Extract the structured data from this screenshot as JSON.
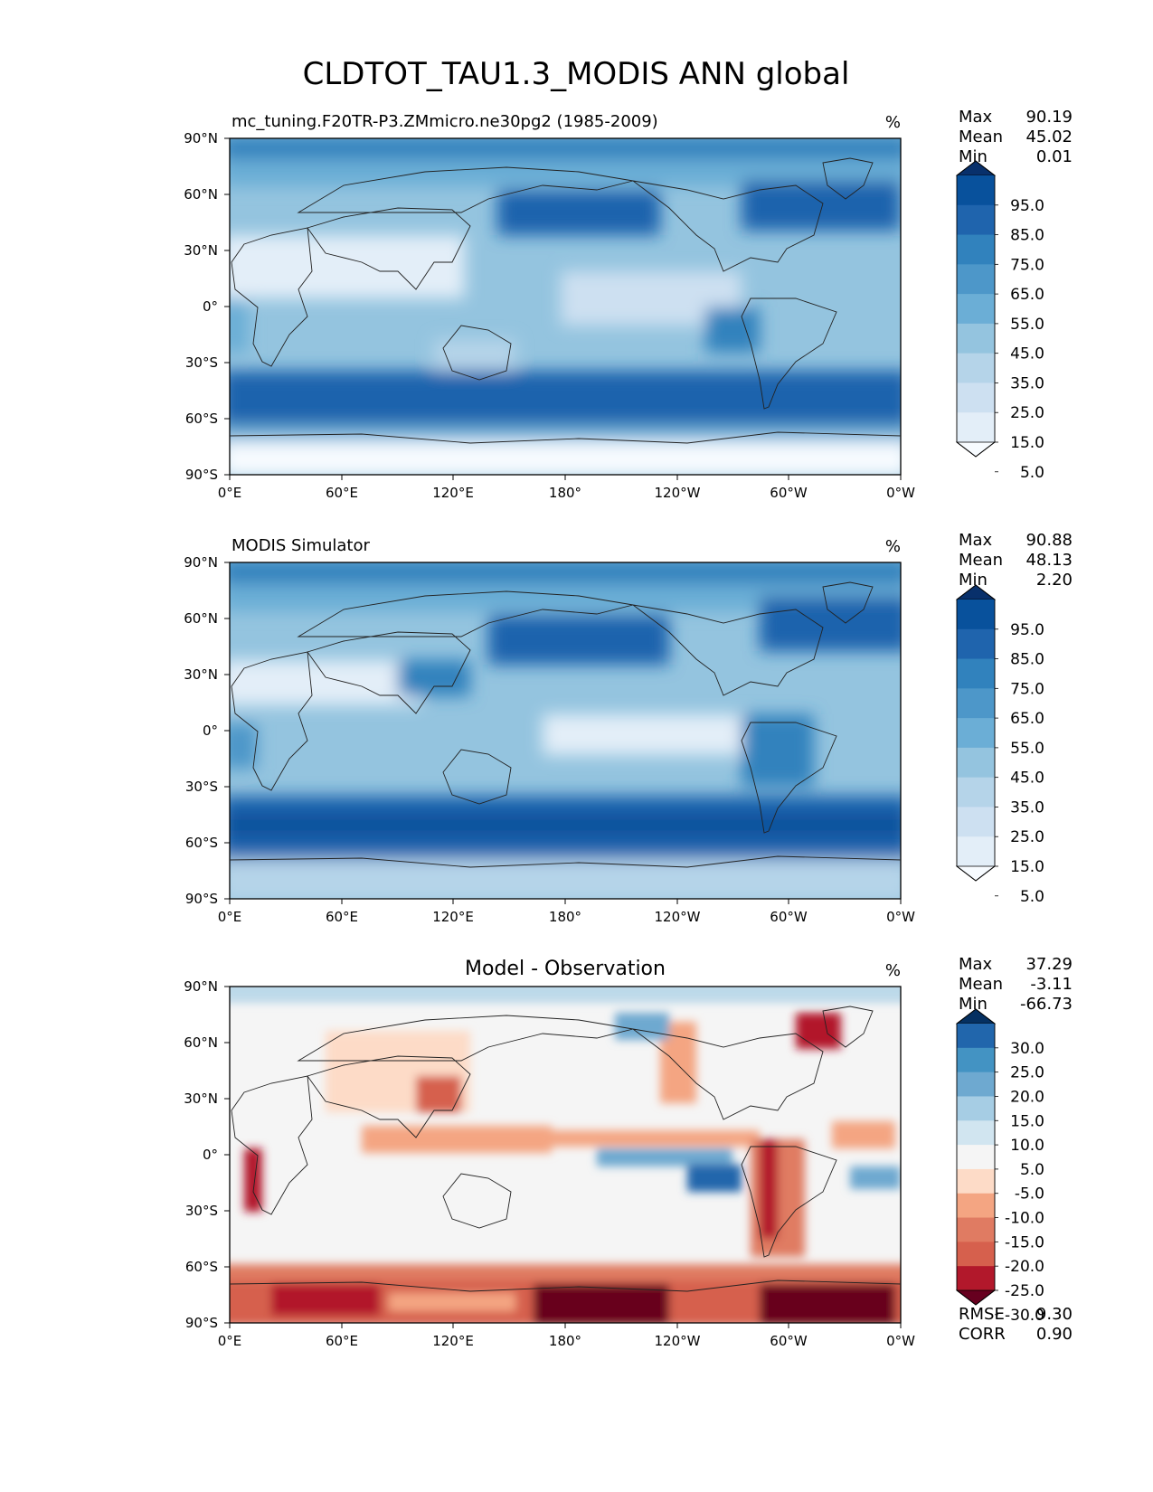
{
  "title": "CLDTOT_TAU1.3_MODIS ANN global",
  "lat_labels": [
    "90°N",
    "60°N",
    "30°N",
    "0°",
    "30°S",
    "60°S",
    "90°S"
  ],
  "lon_labels": [
    "0°E",
    "60°E",
    "120°E",
    "180°",
    "120°W",
    "60°W",
    "0°W"
  ],
  "panels": [
    {
      "id": "test",
      "title": "mc_tuning.F20TR-P3.ZMmicro.ne30pg2 (1985-2009)",
      "units": "%",
      "stats": [
        {
          "label": "Max",
          "value": "90.19"
        },
        {
          "label": "Mean",
          "value": "45.02"
        },
        {
          "label": "Min",
          "value": "0.01"
        }
      ],
      "colorbar": {
        "labels": [
          "95.0",
          "85.0",
          "75.0",
          "65.0",
          "55.0",
          "45.0",
          "35.0",
          "25.0",
          "15.0",
          "5.0"
        ],
        "colors": [
          "#08306b",
          "#08519c",
          "#1f64ad",
          "#3182bd",
          "#4d97c9",
          "#6baed6",
          "#94c4df",
          "#b5d4e9",
          "#cde0f1",
          "#e3eef8",
          "#f7fbff"
        ]
      }
    },
    {
      "id": "ref",
      "title": "MODIS Simulator",
      "units": "%",
      "stats": [
        {
          "label": "Max",
          "value": "90.88"
        },
        {
          "label": "Mean",
          "value": "48.13"
        },
        {
          "label": "Min",
          "value": "2.20"
        }
      ],
      "colorbar": {
        "labels": [
          "95.0",
          "85.0",
          "75.0",
          "65.0",
          "55.0",
          "45.0",
          "35.0",
          "25.0",
          "15.0",
          "5.0"
        ],
        "colors": [
          "#08306b",
          "#08519c",
          "#1f64ad",
          "#3182bd",
          "#4d97c9",
          "#6baed6",
          "#94c4df",
          "#b5d4e9",
          "#cde0f1",
          "#e3eef8",
          "#f7fbff"
        ]
      }
    },
    {
      "id": "diff",
      "title": "Model - Observation",
      "units": "%",
      "stats": [
        {
          "label": "Max",
          "value": "37.29"
        },
        {
          "label": "Mean",
          "value": "-3.11"
        },
        {
          "label": "Min",
          "value": "-66.73"
        }
      ],
      "extra_stats": [
        {
          "label": "RMSE",
          "value": "9.30"
        },
        {
          "label": "CORR",
          "value": "0.90"
        }
      ],
      "colorbar": {
        "labels": [
          "30.0",
          "25.0",
          "20.0",
          "15.0",
          "10.0",
          "5.0",
          "-5.0",
          "-10.0",
          "-15.0",
          "-20.0",
          "-25.0",
          "-30.0"
        ],
        "colors": [
          "#053061",
          "#2166ac",
          "#4393c3",
          "#6ea9d0",
          "#a6cde4",
          "#d1e5f0",
          "#f5f5f5",
          "#fddbc7",
          "#f4a582",
          "#e07b62",
          "#d6604d",
          "#b2182b",
          "#67001f"
        ]
      }
    }
  ]
}
